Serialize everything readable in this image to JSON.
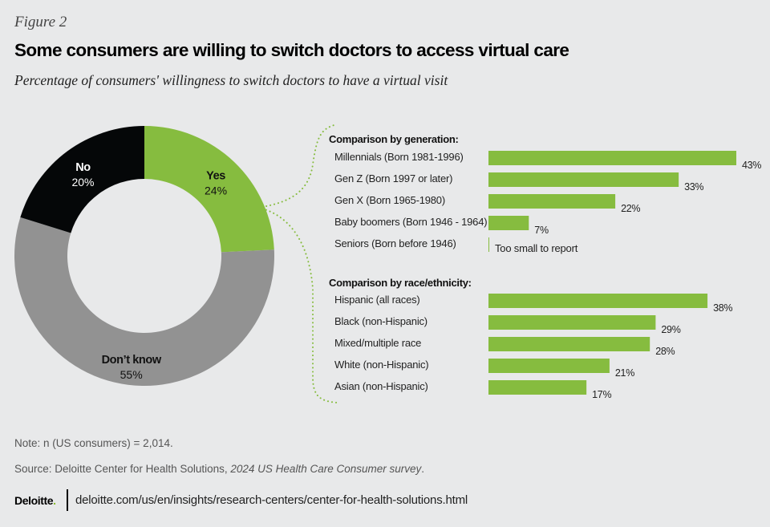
{
  "header": {
    "figure_label": "Figure 2",
    "title": "Some consumers are willing to switch doctors to access virtual care",
    "subtitle": "Percentage of consumers' willingness to switch doctors to have a virtual visit"
  },
  "colors": {
    "background": "#e8e9ea",
    "yes": "#86bc3f",
    "no": "#050708",
    "dont_know": "#929292",
    "bar": "#86bc3f",
    "connector": "#86bc3f"
  },
  "chart_data": [
    {
      "type": "pie",
      "variant": "donut",
      "title": "Willingness to switch doctors for a virtual visit",
      "slices": [
        {
          "label": "Yes",
          "value": 24,
          "display": "24%"
        },
        {
          "label": "Don’t know",
          "value": 55,
          "display": "55%"
        },
        {
          "label": "No",
          "value": 20,
          "display": "20%"
        }
      ],
      "unit": "%"
    },
    {
      "type": "bar",
      "orientation": "horizontal",
      "title": "Comparison by generation:",
      "categories": [
        "Millennials  (Born 1981-1996)",
        "Gen Z  (Born 1997 or later)",
        "Gen X (Born 1965-1980)",
        "Baby boomers (Born 1946 - 1964)",
        "Seniors (Born before 1946)"
      ],
      "values": [
        43,
        33,
        22,
        7,
        null
      ],
      "value_labels": [
        "43%",
        "33%",
        "22%",
        "7%",
        "Too small to report"
      ],
      "xlim": [
        0,
        43
      ],
      "grid": false
    },
    {
      "type": "bar",
      "orientation": "horizontal",
      "title": "Comparison by race/ethnicity:",
      "categories": [
        "Hispanic (all races)",
        "Black (non-Hispanic)",
        "Mixed/multiple race",
        "White (non-Hispanic)",
        "Asian (non-Hispanic)"
      ],
      "values": [
        38,
        29,
        28,
        21,
        17
      ],
      "value_labels": [
        "38%",
        "29%",
        "28%",
        "21%",
        "17%"
      ],
      "xlim": [
        0,
        43
      ],
      "grid": false
    }
  ],
  "footer": {
    "note": "Note: n (US consumers) = 2,014.",
    "source_prefix": "Source: Deloitte Center for Health Solutions, ",
    "source_italic": "2024 US Health Care Consumer survey",
    "source_suffix": ".",
    "logo_text": "Deloitte",
    "logo_dot": ".",
    "url": "deloitte.com/us/en/insights/research-centers/center-for-health-solutions.html"
  }
}
